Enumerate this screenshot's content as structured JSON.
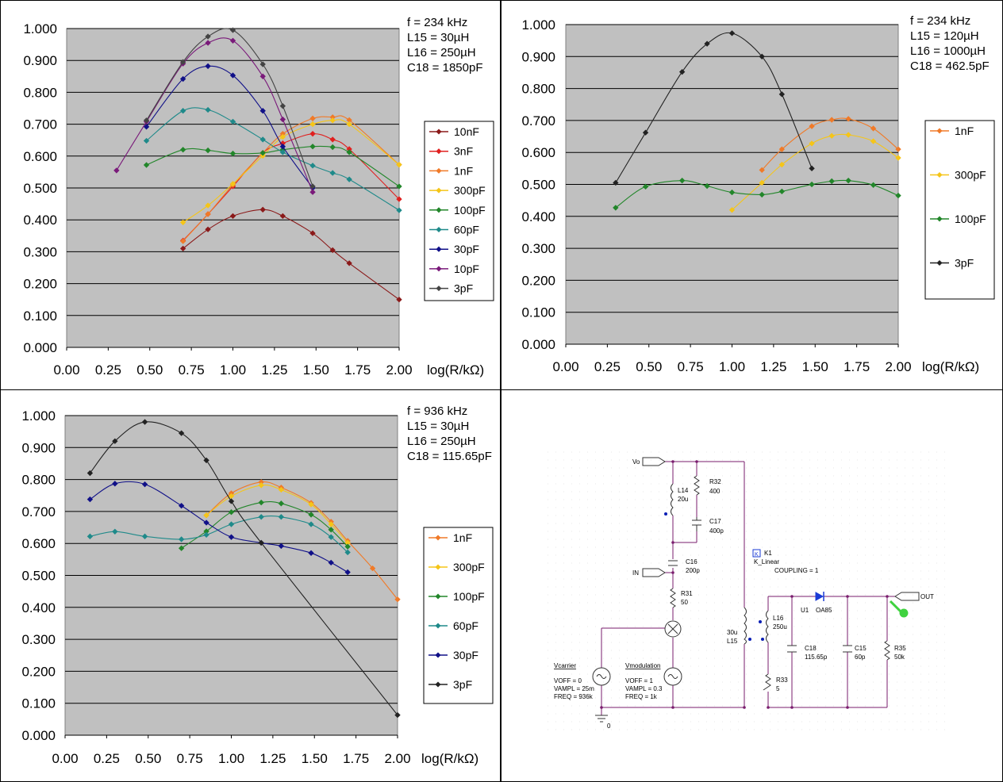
{
  "chart_data": [
    {
      "type": "line",
      "xlabel": "log(R/kΩ)",
      "xlim": [
        0,
        2
      ],
      "ylim": [
        0,
        1
      ],
      "xticks": [
        "0.00",
        "0.25",
        "0.50",
        "0.75",
        "1.00",
        "1.25",
        "1.50",
        "1.75",
        "2.00"
      ],
      "yticks": [
        "0.000",
        "0.100",
        "0.200",
        "0.300",
        "0.400",
        "0.500",
        "0.600",
        "0.700",
        "0.800",
        "0.900",
        "1.000"
      ],
      "grid": true,
      "legend_position": "right",
      "annotation": [
        "f = 234 kHz",
        "L15 = 30µH",
        "L16 = 250µH",
        "C18 = 1850pF"
      ],
      "series": [
        {
          "name": "10nF",
          "color": "#8b1a1a",
          "points": [
            [
              0.7,
              0.31
            ],
            [
              0.85,
              0.37
            ],
            [
              1.0,
              0.412
            ],
            [
              1.18,
              0.432
            ],
            [
              1.3,
              0.412
            ],
            [
              1.48,
              0.358
            ],
            [
              1.6,
              0.305
            ],
            [
              1.7,
              0.264
            ],
            [
              2.0,
              0.15
            ]
          ]
        },
        {
          "name": "3nF",
          "color": "#e0201f",
          "points": [
            [
              0.7,
              0.335
            ],
            [
              0.85,
              0.418
            ],
            [
              1.0,
              0.505
            ],
            [
              1.18,
              0.61
            ],
            [
              1.3,
              0.64
            ],
            [
              1.48,
              0.67
            ],
            [
              1.6,
              0.652
            ],
            [
              1.7,
              0.622
            ],
            [
              2.0,
              0.465
            ]
          ]
        },
        {
          "name": "1nF",
          "color": "#f07a28",
          "points": [
            [
              0.7,
              0.333
            ],
            [
              0.85,
              0.418
            ],
            [
              1.0,
              0.51
            ],
            [
              1.18,
              0.61
            ],
            [
              1.3,
              0.67
            ],
            [
              1.48,
              0.718
            ],
            [
              1.6,
              0.722
            ],
            [
              1.7,
              0.713
            ],
            [
              2.0,
              0.573
            ]
          ]
        },
        {
          "name": "300pF",
          "color": "#f5c518",
          "points": [
            [
              0.7,
              0.392
            ],
            [
              0.85,
              0.445
            ],
            [
              1.0,
              0.513
            ],
            [
              1.18,
              0.601
            ],
            [
              1.3,
              0.66
            ],
            [
              1.48,
              0.7
            ],
            [
              1.6,
              0.712
            ],
            [
              1.7,
              0.7
            ],
            [
              2.0,
              0.573
            ]
          ]
        },
        {
          "name": "100pF",
          "color": "#22862a",
          "points": [
            [
              0.48,
              0.572
            ],
            [
              0.7,
              0.62
            ],
            [
              0.85,
              0.618
            ],
            [
              1.0,
              0.608
            ],
            [
              1.18,
              0.61
            ],
            [
              1.3,
              0.62
            ],
            [
              1.48,
              0.63
            ],
            [
              1.6,
              0.628
            ],
            [
              1.7,
              0.612
            ],
            [
              2.0,
              0.505
            ]
          ]
        },
        {
          "name": "60pF",
          "color": "#1f8a8a",
          "points": [
            [
              0.48,
              0.648
            ],
            [
              0.7,
              0.742
            ],
            [
              0.85,
              0.745
            ],
            [
              1.0,
              0.708
            ],
            [
              1.18,
              0.652
            ],
            [
              1.3,
              0.612
            ],
            [
              1.48,
              0.57
            ],
            [
              1.6,
              0.547
            ],
            [
              1.7,
              0.527
            ],
            [
              2.0,
              0.43
            ]
          ]
        },
        {
          "name": "30pF",
          "color": "#101088",
          "points": [
            [
              0.48,
              0.692
            ],
            [
              0.7,
              0.842
            ],
            [
              0.85,
              0.882
            ],
            [
              1.0,
              0.853
            ],
            [
              1.18,
              0.742
            ],
            [
              1.3,
              0.63
            ],
            [
              1.48,
              0.5
            ]
          ]
        },
        {
          "name": "10pF",
          "color": "#7a1a7a",
          "points": [
            [
              0.3,
              0.555
            ],
            [
              0.48,
              0.708
            ],
            [
              0.7,
              0.89
            ],
            [
              0.85,
              0.955
            ],
            [
              1.0,
              0.962
            ],
            [
              1.18,
              0.85
            ],
            [
              1.3,
              0.715
            ],
            [
              1.48,
              0.487
            ]
          ]
        },
        {
          "name": "3pF",
          "color": "#444444",
          "points": [
            [
              0.48,
              0.712
            ],
            [
              0.7,
              0.895
            ],
            [
              0.85,
              0.975
            ],
            [
              1.0,
              0.995
            ],
            [
              1.18,
              0.888
            ],
            [
              1.3,
              0.757
            ],
            [
              1.48,
              0.505
            ]
          ]
        }
      ]
    },
    {
      "type": "line",
      "xlabel": "log(R/kΩ)",
      "xlim": [
        0,
        2
      ],
      "ylim": [
        0,
        1
      ],
      "xticks": [
        "0.00",
        "0.25",
        "0.50",
        "0.75",
        "1.00",
        "1.25",
        "1.50",
        "1.75",
        "2.00"
      ],
      "yticks": [
        "0.000",
        "0.100",
        "0.200",
        "0.300",
        "0.400",
        "0.500",
        "0.600",
        "0.700",
        "0.800",
        "0.900",
        "1.000"
      ],
      "grid": true,
      "legend_position": "right",
      "annotation": [
        "f = 234 kHz",
        "L15 = 120µH",
        "L16 = 1000µH",
        "C18 = 462.5pF"
      ],
      "series": [
        {
          "name": "1nF",
          "color": "#f07a28",
          "points": [
            [
              1.18,
              0.545
            ],
            [
              1.3,
              0.61
            ],
            [
              1.48,
              0.682
            ],
            [
              1.6,
              0.702
            ],
            [
              1.7,
              0.705
            ],
            [
              1.85,
              0.675
            ],
            [
              2.0,
              0.61
            ]
          ]
        },
        {
          "name": "300pF",
          "color": "#f5c518",
          "points": [
            [
              1.0,
              0.42
            ],
            [
              1.18,
              0.505
            ],
            [
              1.3,
              0.562
            ],
            [
              1.48,
              0.628
            ],
            [
              1.6,
              0.652
            ],
            [
              1.7,
              0.655
            ],
            [
              1.85,
              0.635
            ],
            [
              2.0,
              0.583
            ]
          ]
        },
        {
          "name": "100pF",
          "color": "#22862a",
          "points": [
            [
              0.3,
              0.427
            ],
            [
              0.48,
              0.493
            ],
            [
              0.7,
              0.512
            ],
            [
              0.85,
              0.495
            ],
            [
              1.0,
              0.475
            ],
            [
              1.18,
              0.468
            ],
            [
              1.3,
              0.478
            ],
            [
              1.48,
              0.5
            ],
            [
              1.6,
              0.51
            ],
            [
              1.7,
              0.512
            ],
            [
              1.85,
              0.498
            ],
            [
              2.0,
              0.465
            ]
          ]
        },
        {
          "name": "3pF",
          "color": "#222222",
          "points": [
            [
              0.3,
              0.505
            ],
            [
              0.48,
              0.662
            ],
            [
              0.7,
              0.852
            ],
            [
              0.85,
              0.94
            ],
            [
              1.0,
              0.973
            ],
            [
              1.18,
              0.9
            ],
            [
              1.3,
              0.782
            ],
            [
              1.48,
              0.55
            ]
          ]
        }
      ]
    },
    {
      "type": "line",
      "xlabel": "log(R/kΩ)",
      "xlim": [
        0,
        2
      ],
      "ylim": [
        0,
        1
      ],
      "xticks": [
        "0.00",
        "0.25",
        "0.50",
        "0.75",
        "1.00",
        "1.25",
        "1.50",
        "1.75",
        "2.00"
      ],
      "yticks": [
        "0.000",
        "0.100",
        "0.200",
        "0.300",
        "0.400",
        "0.500",
        "0.600",
        "0.700",
        "0.800",
        "0.900",
        "1.000"
      ],
      "grid": true,
      "legend_position": "right",
      "annotation": [
        "f = 936 kHz",
        "L15 = 30µH",
        "L16 = 250µH",
        "C18 = 115.65pF"
      ],
      "series": [
        {
          "name": "1nF",
          "color": "#f07a28",
          "points": [
            [
              0.85,
              0.688
            ],
            [
              1.0,
              0.757
            ],
            [
              1.18,
              0.792
            ],
            [
              1.3,
              0.775
            ],
            [
              1.48,
              0.727
            ],
            [
              1.6,
              0.668
            ],
            [
              1.7,
              0.608
            ],
            [
              1.85,
              0.522
            ],
            [
              2.0,
              0.425
            ]
          ]
        },
        {
          "name": "300pF",
          "color": "#f5c518",
          "points": [
            [
              0.85,
              0.688
            ],
            [
              1.0,
              0.748
            ],
            [
              1.18,
              0.782
            ],
            [
              1.3,
              0.768
            ],
            [
              1.48,
              0.722
            ],
            [
              1.6,
              0.66
            ],
            [
              1.7,
              0.602
            ]
          ]
        },
        {
          "name": "100pF",
          "color": "#22862a",
          "points": [
            [
              0.7,
              0.585
            ],
            [
              0.85,
              0.638
            ],
            [
              1.0,
              0.698
            ],
            [
              1.18,
              0.728
            ],
            [
              1.3,
              0.725
            ],
            [
              1.48,
              0.69
            ],
            [
              1.6,
              0.643
            ],
            [
              1.7,
              0.59
            ]
          ]
        },
        {
          "name": "60pF",
          "color": "#1f8a8a",
          "points": [
            [
              0.15,
              0.622
            ],
            [
              0.3,
              0.637
            ],
            [
              0.48,
              0.622
            ],
            [
              0.7,
              0.613
            ],
            [
              0.85,
              0.627
            ],
            [
              1.0,
              0.66
            ],
            [
              1.18,
              0.683
            ],
            [
              1.3,
              0.683
            ],
            [
              1.48,
              0.66
            ],
            [
              1.6,
              0.62
            ],
            [
              1.7,
              0.572
            ]
          ]
        },
        {
          "name": "30pF",
          "color": "#101088",
          "points": [
            [
              0.15,
              0.738
            ],
            [
              0.3,
              0.787
            ],
            [
              0.48,
              0.785
            ],
            [
              0.7,
              0.718
            ],
            [
              0.85,
              0.665
            ],
            [
              1.0,
              0.62
            ],
            [
              1.18,
              0.602
            ],
            [
              1.3,
              0.592
            ],
            [
              1.48,
              0.57
            ],
            [
              1.6,
              0.54
            ],
            [
              1.7,
              0.51
            ]
          ]
        },
        {
          "name": "3pF",
          "color": "#222222",
          "points": [
            [
              0.15,
              0.82
            ],
            [
              0.3,
              0.92
            ],
            [
              0.48,
              0.98
            ],
            [
              0.7,
              0.945
            ],
            [
              0.85,
              0.86
            ],
            [
              1.0,
              0.732
            ],
            [
              1.18,
              0.602
            ],
            [
              2.0,
              0.063
            ]
          ]
        }
      ]
    }
  ],
  "schematic": {
    "labels": {
      "vo": "Vo",
      "in": "IN",
      "out": "OUT",
      "l14_name": "L14",
      "l14_val": "20u",
      "r32_name": "R32",
      "r32_val": "400",
      "c17_name": "C17",
      "c17_val": "400p",
      "c16_name": "C16",
      "c16_val": "200p",
      "r31_name": "R31",
      "r31_val": "50",
      "k1_box": "K",
      "k1_name": "K1",
      "k1_type": "K_Linear",
      "k1_coupling": "COUPLING = 1",
      "l15_val": "30u",
      "l15_name": "L15",
      "l16_name": "L16",
      "l16_val": "250u",
      "u1_name": "U1",
      "u1_type": "OA85",
      "c18_name": "C18",
      "c18_val": "115.65p",
      "c15_name": "C15",
      "c15_val": "60p",
      "r35_name": "R35",
      "r35_val": "50k",
      "r33_name": "R33",
      "r33_val": "5",
      "vcarrier_name": "Vcarrier",
      "vcarrier_voff": "VOFF = 0",
      "vcarrier_vampl": "VAMPL = 25m",
      "vcarrier_freq": "FREQ = 936k",
      "vmod_name": "Vmodulation",
      "vmod_voff": "VOFF = 1",
      "vmod_vampl": "VAMPL = 0.3",
      "vmod_freq": "FREQ = 1k",
      "ground": "0"
    },
    "colors": {
      "wire": "#7a1d6e",
      "part": "#333333",
      "pin": "#0a1fb5",
      "diode": "#1a3bd6",
      "probe": "#3fd23f"
    }
  }
}
